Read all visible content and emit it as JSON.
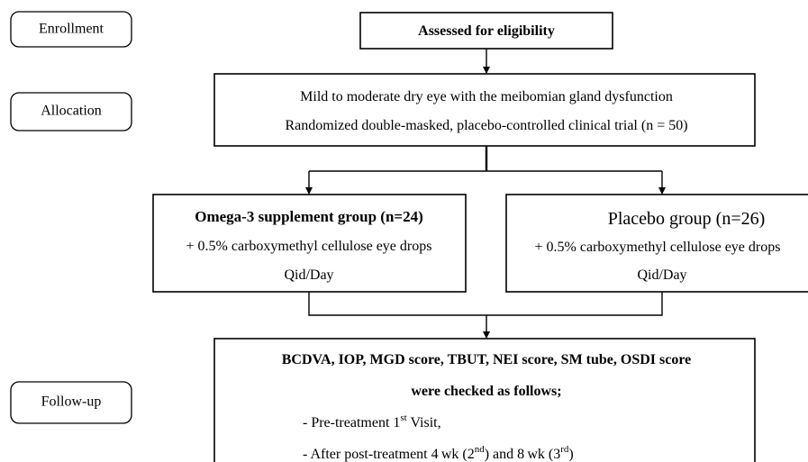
{
  "stages": [
    "Enrollment",
    "Allocation",
    "Follow-up"
  ],
  "nodes": [
    {
      "lines": [
        [
          {
            "text": "Assessed for eligibility"
          }
        ]
      ]
    },
    {
      "lines": [
        [
          {
            "text": "Mild to moderate dry eye with the meibomian gland dysfunction"
          }
        ],
        [
          {
            "text": "Randomized double-masked, placebo-controlled clinical trial (n = 50)"
          }
        ]
      ]
    },
    {
      "lines": [
        [
          {
            "text": "Omega-3 supplement group (n=24)"
          }
        ],
        [
          {
            "text": "+  0.5% carboxymethyl cellulose eye drops"
          }
        ],
        [
          {
            "text": "Qid/Day"
          }
        ]
      ]
    },
    {
      "lines": [
        [
          {
            "text": "Placebo group (n=26)"
          }
        ],
        [
          {
            "text": "+  0.5% carboxymethyl cellulose eye drops"
          }
        ],
        [
          {
            "text": "Qid/Day"
          }
        ]
      ]
    },
    {
      "lines": [
        [
          {
            "text": "BCDVA, IOP, MGD score, TBUT, NEI score, SM tube, OSDI score"
          }
        ],
        [
          {
            "text": "were checked as follows;"
          }
        ],
        [
          {
            "text": "- Pre-treatment 1"
          },
          {
            "text": "st",
            "sup": true
          },
          {
            "text": " Visit,"
          }
        ],
        [
          {
            "text": "- After post-treatment 4 wk  (2"
          },
          {
            "text": "nd",
            "sup": true
          },
          {
            "text": ") and 8 wk (3"
          },
          {
            "text": "rd",
            "sup": true
          },
          {
            "text": ")"
          }
        ]
      ]
    }
  ]
}
